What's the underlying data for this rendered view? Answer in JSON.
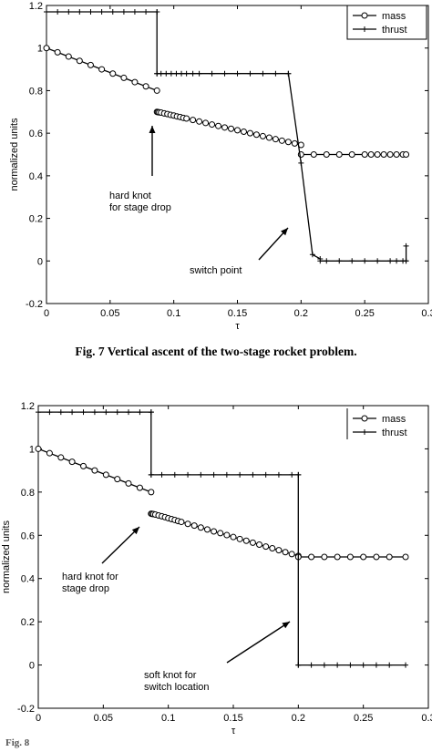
{
  "figure": {
    "caption_top": "Fig. 7    Vertical ascent of the two-stage rocket problem.",
    "caption_bottom_partial": "Fig. 8"
  },
  "chart_data": [
    {
      "type": "line",
      "xlabel": "τ",
      "ylabel": "normalized units",
      "xlim": [
        0,
        0.3
      ],
      "ylim": [
        -0.2,
        1.2
      ],
      "xticks": [
        "0",
        "0.05",
        "0.1",
        "0.15",
        "0.2",
        "0.25",
        "0.3"
      ],
      "yticks": [
        "-0.2",
        "0",
        "0.2",
        "0.4",
        "0.6",
        "0.8",
        "1",
        "1.2"
      ],
      "grid": false,
      "legend_position": "top-right",
      "series": [
        {
          "name": "mass",
          "marker": "circle",
          "segments": [
            {
              "x": [
                0,
                0.0087,
                0.0174,
                0.026,
                0.0347,
                0.0434,
                0.0521,
                0.0608,
                0.0694,
                0.0781,
                0.0868
              ],
              "y": [
                1.0,
                0.98,
                0.96,
                0.94,
                0.92,
                0.9,
                0.88,
                0.86,
                0.84,
                0.82,
                0.8
              ]
            },
            {
              "x": [
                0.0868,
                0.0875,
                0.0885,
                0.09,
                0.0925,
                0.095,
                0.0975,
                0.1,
                0.1025,
                0.105,
                0.1075,
                0.11,
                0.115,
                0.12,
                0.125,
                0.13,
                0.135,
                0.14,
                0.145,
                0.15,
                0.155,
                0.16,
                0.165,
                0.17,
                0.175,
                0.18,
                0.185,
                0.19,
                0.195,
                0.2
              ],
              "y": [
                0.7,
                0.699,
                0.698,
                0.697,
                0.693,
                0.69,
                0.686,
                0.683,
                0.679,
                0.676,
                0.672,
                0.669,
                0.662,
                0.655,
                0.648,
                0.641,
                0.634,
                0.627,
                0.621,
                0.614,
                0.607,
                0.6,
                0.593,
                0.586,
                0.579,
                0.572,
                0.565,
                0.559,
                0.552,
                0.545
              ]
            },
            {
              "x": [
                0.2,
                0.21,
                0.22,
                0.23,
                0.24,
                0.25,
                0.255,
                0.26,
                0.265,
                0.27,
                0.275,
                0.28,
                0.2825
              ],
              "y": [
                0.5,
                0.5,
                0.5,
                0.5,
                0.5,
                0.5,
                0.5,
                0.5,
                0.5,
                0.5,
                0.5,
                0.5,
                0.5
              ]
            }
          ]
        },
        {
          "name": "thrust",
          "marker": "plus",
          "segments": [
            {
              "x": [
                0,
                0.0087,
                0.0174,
                0.026,
                0.0347,
                0.0434,
                0.0521,
                0.0608,
                0.0694,
                0.0781,
                0.0868
              ],
              "y": [
                1.17,
                1.17,
                1.17,
                1.17,
                1.17,
                1.17,
                1.17,
                1.17,
                1.17,
                1.17,
                1.17
              ]
            },
            {
              "x": [
                0.0868,
                0.0868
              ],
              "y": [
                1.17,
                0.88
              ]
            },
            {
              "x": [
                0.0868,
                0.09,
                0.094,
                0.098,
                0.102,
                0.106,
                0.11,
                0.115,
                0.12,
                0.13,
                0.14,
                0.15,
                0.16,
                0.17,
                0.18,
                0.19
              ],
              "y": [
                0.88,
                0.88,
                0.88,
                0.88,
                0.88,
                0.88,
                0.88,
                0.88,
                0.88,
                0.88,
                0.88,
                0.88,
                0.88,
                0.88,
                0.88,
                0.88
              ]
            },
            {
              "x": [
                0.19,
                0.2,
                0.209,
                0.215
              ],
              "y": [
                0.88,
                0.46,
                0.03,
                0.01
              ]
            },
            {
              "x": [
                0.215,
                0.22,
                0.23,
                0.24,
                0.25,
                0.26,
                0.27,
                0.275,
                0.28,
                0.2825
              ],
              "y": [
                0.0,
                0.0,
                0.0,
                0.0,
                0.0,
                0.0,
                0.0,
                0.0,
                0.0,
                0.0
              ]
            },
            {
              "x": [
                0.2825,
                0.2825
              ],
              "y": [
                0.0,
                0.07
              ]
            }
          ]
        }
      ],
      "annotations": [
        {
          "lines": [
            "hard knot",
            "for stage drop"
          ],
          "arrow_to": [
            0.0875,
            0.72
          ]
        },
        {
          "lines": [
            "switch point"
          ],
          "arrow_to": [
            0.199,
            0.18
          ]
        }
      ]
    },
    {
      "type": "line",
      "xlabel": "τ",
      "ylabel": "normalized units",
      "xlim": [
        0,
        0.3
      ],
      "ylim": [
        -0.2,
        1.2
      ],
      "xticks": [
        "0",
        "0.05",
        "0.1",
        "0.15",
        "0.2",
        "0.25",
        "0.3"
      ],
      "yticks": [
        "-0.2",
        "0",
        "0.2",
        "0.4",
        "0.6",
        "0.8",
        "1",
        "1.2"
      ],
      "grid": false,
      "legend_position": "top-right",
      "series": [
        {
          "name": "mass",
          "marker": "circle",
          "segments": [
            {
              "x": [
                0,
                0.0087,
                0.0174,
                0.026,
                0.0347,
                0.0434,
                0.0521,
                0.0608,
                0.0694,
                0.0781,
                0.0868
              ],
              "y": [
                1.0,
                0.98,
                0.96,
                0.94,
                0.92,
                0.9,
                0.88,
                0.86,
                0.84,
                0.82,
                0.8
              ]
            },
            {
              "x": [
                0.0868,
                0.0875,
                0.0885,
                0.09,
                0.0925,
                0.095,
                0.0975,
                0.1,
                0.1025,
                0.105,
                0.1075,
                0.11,
                0.115,
                0.12,
                0.125,
                0.13,
                0.135,
                0.14,
                0.145,
                0.15,
                0.155,
                0.16,
                0.165,
                0.17,
                0.175,
                0.18,
                0.185,
                0.19,
                0.195,
                0.2
              ],
              "y": [
                0.7,
                0.699,
                0.698,
                0.696,
                0.692,
                0.688,
                0.684,
                0.679,
                0.675,
                0.671,
                0.666,
                0.662,
                0.653,
                0.645,
                0.636,
                0.627,
                0.618,
                0.61,
                0.601,
                0.592,
                0.583,
                0.575,
                0.566,
                0.557,
                0.548,
                0.54,
                0.531,
                0.522,
                0.513,
                0.505
              ]
            },
            {
              "x": [
                0.2,
                0.21,
                0.22,
                0.23,
                0.24,
                0.25,
                0.26,
                0.27,
                0.2825
              ],
              "y": [
                0.5,
                0.5,
                0.5,
                0.5,
                0.5,
                0.5,
                0.5,
                0.5,
                0.5
              ]
            }
          ]
        },
        {
          "name": "thrust",
          "marker": "plus",
          "segments": [
            {
              "x": [
                0,
                0.0087,
                0.0174,
                0.026,
                0.0347,
                0.0434,
                0.0521,
                0.0608,
                0.0694,
                0.0781,
                0.0868
              ],
              "y": [
                1.17,
                1.17,
                1.17,
                1.17,
                1.17,
                1.17,
                1.17,
                1.17,
                1.17,
                1.17,
                1.17
              ]
            },
            {
              "x": [
                0.0868,
                0.0868
              ],
              "y": [
                1.17,
                0.88
              ]
            },
            {
              "x": [
                0.0868,
                0.095,
                0.105,
                0.115,
                0.125,
                0.135,
                0.145,
                0.155,
                0.165,
                0.175,
                0.185,
                0.195,
                0.2
              ],
              "y": [
                0.88,
                0.88,
                0.88,
                0.88,
                0.88,
                0.88,
                0.88,
                0.88,
                0.88,
                0.88,
                0.88,
                0.88,
                0.88
              ]
            },
            {
              "x": [
                0.2,
                0.2
              ],
              "y": [
                0.88,
                0.0
              ]
            },
            {
              "x": [
                0.2,
                0.21,
                0.22,
                0.23,
                0.24,
                0.25,
                0.26,
                0.27,
                0.2825
              ],
              "y": [
                0.0,
                0.0,
                0.0,
                0.0,
                0.0,
                0.0,
                0.0,
                0.0,
                0.0
              ]
            }
          ]
        }
      ],
      "annotations": [
        {
          "lines": [
            "hard knot for",
            "stage drop"
          ],
          "arrow_to": [
            0.0865,
            0.7
          ]
        },
        {
          "lines": [
            "soft knot for",
            "switch location"
          ],
          "arrow_to": [
            0.199,
            0.3
          ]
        }
      ]
    }
  ]
}
